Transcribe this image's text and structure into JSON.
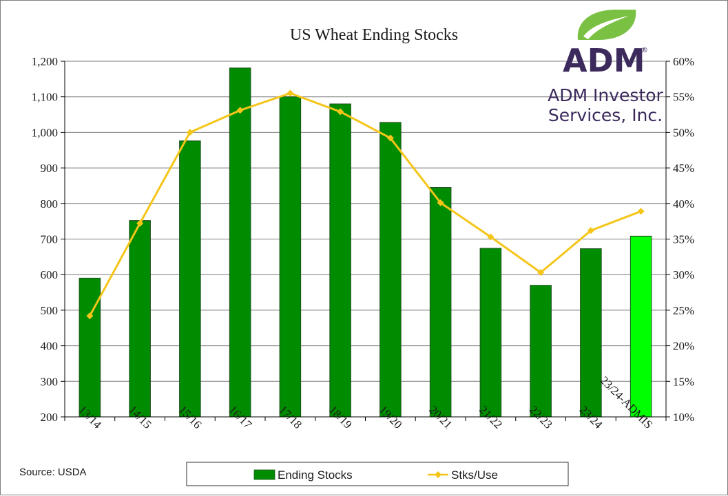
{
  "chart_data": {
    "type": "bar",
    "title": "US Wheat Ending Stocks",
    "categories": [
      "13/14",
      "14/15",
      "15/16",
      "16/17",
      "17/18",
      "18/19",
      "19/20",
      "20/21",
      "21/22",
      "22/23",
      "23/24",
      "23/24-ADMIS"
    ],
    "series": [
      {
        "name": "Ending Stocks",
        "type": "bar",
        "axis": "left",
        "color": "#008c00",
        "highlight_color": "#00ff00",
        "highlight_index": 11,
        "values": [
          590,
          752,
          976,
          1181,
          1100,
          1080,
          1028,
          845,
          674,
          570,
          673,
          708
        ]
      },
      {
        "name": "Stks/Use",
        "type": "line",
        "axis": "right",
        "color": "#f5c518",
        "marker": "diamond",
        "values": [
          24.2,
          37.2,
          50.0,
          53.1,
          55.5,
          52.9,
          49.2,
          40.1,
          35.3,
          30.3,
          36.2,
          38.9
        ]
      }
    ],
    "y_left": {
      "min": 200,
      "max": 1200,
      "step": 100,
      "format": "thousands"
    },
    "y_right": {
      "min": 10,
      "max": 60,
      "step": 5,
      "unit": "%"
    },
    "grid": true,
    "legend": {
      "position": "bottom"
    },
    "source": "Source: USDA"
  },
  "branding": {
    "logo_word": "ADM",
    "logo_mark": "®",
    "company_line1": "ADM Investor",
    "company_line2": "Services, Inc.",
    "leaf_color": "#7ac143",
    "text_color": "#3c2a5c"
  }
}
